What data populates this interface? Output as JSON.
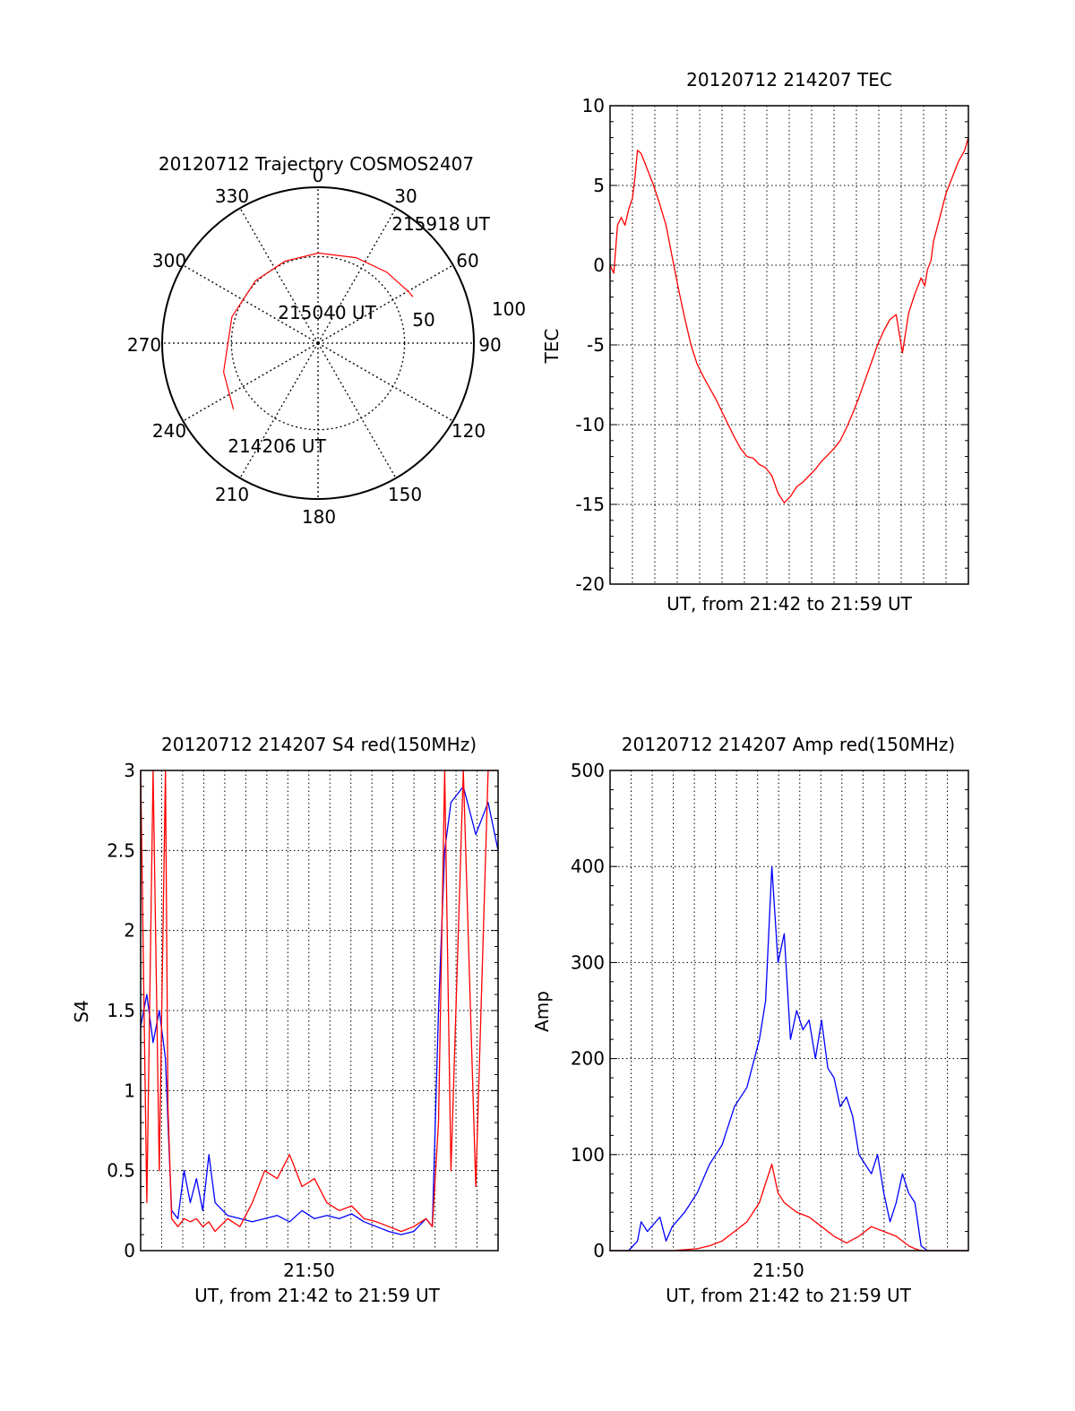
{
  "chart_data": [
    {
      "type": "polar",
      "title": "20120712 Trajectory COSMOS2407",
      "angle_labels": [
        "0",
        "30",
        "60",
        "90",
        "120",
        "150",
        "180",
        "210",
        "240",
        "270",
        "300",
        "330"
      ],
      "radius_labels": [
        "50",
        "100"
      ],
      "grid": true,
      "color": "#ff0000",
      "series": [
        {
          "points": [
            [
              232,
              62
            ],
            [
              253,
              57
            ],
            [
              287,
              52
            ],
            [
              315,
              51
            ],
            [
              338,
              51
            ],
            [
              0,
              52
            ],
            [
              24,
              54
            ],
            [
              44,
              57
            ],
            [
              60,
              60
            ],
            [
              64,
              61
            ]
          ]
        }
      ],
      "annotations": [
        {
          "label": "214206 UT",
          "az": 232,
          "zen": 62
        },
        {
          "label": "215040 UT",
          "az": 0,
          "zen": 52
        },
        {
          "label": "215918 UT",
          "az": 64,
          "zen": 61
        }
      ]
    },
    {
      "type": "line",
      "title": "20120712 214207 TEC",
      "xlabel": "UT, from 21:42 to 21:59 UT",
      "ylabel": "TEC",
      "xlim": [
        21.7,
        21.988
      ],
      "ylim": [
        -20,
        10
      ],
      "yticks": [
        "10",
        "5",
        "0",
        "-5",
        "-10",
        "-15",
        "-20"
      ],
      "grid": true,
      "series": [
        {
          "color": "#ff0000",
          "x": [
            21.7,
            21.703,
            21.706,
            21.709,
            21.712,
            21.715,
            21.718,
            21.72,
            21.722,
            21.725,
            21.73,
            21.735,
            21.74,
            21.745,
            21.75,
            21.755,
            21.76,
            21.765,
            21.77,
            21.775,
            21.78,
            21.785,
            21.79,
            21.795,
            21.8,
            21.805,
            21.81,
            21.815,
            21.82,
            21.825,
            21.83,
            21.835,
            21.84,
            21.845,
            21.85,
            21.855,
            21.86,
            21.865,
            21.87,
            21.875,
            21.88,
            21.885,
            21.89,
            21.895,
            21.9,
            21.905,
            21.91,
            21.915,
            21.92,
            21.925,
            21.93,
            21.935,
            21.94,
            21.945,
            21.95,
            21.953,
            21.955,
            21.958,
            21.96,
            21.965,
            21.97,
            21.975,
            21.98,
            21.985,
            21.988
          ],
          "y": [
            0.0,
            -0.5,
            2.5,
            3.0,
            2.5,
            3.5,
            4.2,
            5.5,
            7.2,
            7.0,
            6.0,
            5.0,
            3.8,
            2.5,
            0.5,
            -1.5,
            -3.3,
            -5.0,
            -6.2,
            -7.0,
            -7.7,
            -8.4,
            -9.2,
            -10.0,
            -10.8,
            -11.5,
            -12.0,
            -12.1,
            -12.5,
            -12.7,
            -13.2,
            -14.3,
            -14.9,
            -14.5,
            -13.9,
            -13.6,
            -13.2,
            -12.8,
            -12.3,
            -11.9,
            -11.5,
            -11.0,
            -10.2,
            -9.3,
            -8.3,
            -7.2,
            -6.1,
            -5.0,
            -4.1,
            -3.4,
            -3.1,
            -5.5,
            -3.0,
            -1.8,
            -0.8,
            -1.3,
            -0.3,
            0.3,
            1.5,
            3.0,
            4.5,
            5.5,
            6.5,
            7.2,
            8.0
          ]
        }
      ]
    },
    {
      "type": "line",
      "title": "20120712 214207 S4 red(150MHz)",
      "xlabel": "UT, from 21:42 to 21:59 UT",
      "ylabel": "S4",
      "xtick_label": "21:50",
      "xlim": [
        21.7,
        21.988
      ],
      "ylim": [
        0,
        3
      ],
      "yticks": [
        "3",
        "2.5",
        "2",
        "1.5",
        "1",
        "0.5",
        "0"
      ],
      "grid": true,
      "series": [
        {
          "color": "#0000ff",
          "x": [
            21.7,
            21.705,
            21.71,
            21.715,
            21.72,
            21.722,
            21.725,
            21.73,
            21.735,
            21.74,
            21.745,
            21.75,
            21.755,
            21.76,
            21.77,
            21.78,
            21.79,
            21.8,
            21.81,
            21.82,
            21.83,
            21.84,
            21.85,
            21.86,
            21.87,
            21.88,
            21.89,
            21.9,
            21.91,
            21.92,
            21.93,
            21.935,
            21.94,
            21.945,
            21.95,
            21.96,
            21.97,
            21.98,
            21.988
          ],
          "y": [
            1.4,
            1.6,
            1.3,
            1.5,
            1.2,
            0.8,
            0.25,
            0.2,
            0.5,
            0.3,
            0.45,
            0.25,
            0.6,
            0.3,
            0.22,
            0.2,
            0.18,
            0.2,
            0.22,
            0.18,
            0.25,
            0.2,
            0.22,
            0.2,
            0.23,
            0.18,
            0.15,
            0.12,
            0.1,
            0.12,
            0.2,
            0.15,
            1.5,
            2.5,
            2.8,
            2.9,
            2.6,
            2.8,
            2.5
          ]
        },
        {
          "color": "#ff0000",
          "x": [
            21.7,
            21.705,
            21.71,
            21.715,
            21.72,
            21.722,
            21.725,
            21.73,
            21.735,
            21.74,
            21.745,
            21.75,
            21.755,
            21.76,
            21.77,
            21.78,
            21.79,
            21.8,
            21.81,
            21.82,
            21.83,
            21.84,
            21.85,
            21.86,
            21.87,
            21.88,
            21.89,
            21.9,
            21.91,
            21.92,
            21.93,
            21.935,
            21.94,
            21.945,
            21.95,
            21.96,
            21.97,
            21.98,
            21.988
          ],
          "y": [
            3.0,
            0.3,
            3.0,
            0.5,
            3.0,
            0.9,
            0.2,
            0.15,
            0.2,
            0.18,
            0.2,
            0.15,
            0.18,
            0.12,
            0.2,
            0.15,
            0.3,
            0.5,
            0.45,
            0.6,
            0.4,
            0.45,
            0.3,
            0.25,
            0.28,
            0.2,
            0.18,
            0.15,
            0.12,
            0.15,
            0.2,
            0.15,
            0.8,
            3.0,
            0.5,
            3.0,
            0.4,
            3.0,
            3.0
          ]
        }
      ]
    },
    {
      "type": "line",
      "title": "20120712 214207 Amp red(150MHz)",
      "xlabel": "UT, from 21:42 to 21:59 UT",
      "ylabel": "Amp",
      "xtick_label": "21:50",
      "xlim": [
        21.7,
        21.988
      ],
      "ylim": [
        0,
        500
      ],
      "yticks": [
        "500",
        "400",
        "300",
        "200",
        "100",
        "0"
      ],
      "grid": true,
      "series": [
        {
          "color": "#0000ff",
          "x": [
            21.7,
            21.715,
            21.722,
            21.725,
            21.73,
            21.74,
            21.745,
            21.75,
            21.76,
            21.77,
            21.78,
            21.79,
            21.8,
            21.81,
            21.82,
            21.825,
            21.83,
            21.835,
            21.84,
            21.845,
            21.85,
            21.855,
            21.86,
            21.865,
            21.87,
            21.875,
            21.88,
            21.885,
            21.89,
            21.895,
            21.9,
            21.905,
            21.91,
            21.915,
            21.92,
            21.925,
            21.93,
            21.935,
            21.94,
            21.945,
            21.95,
            21.955,
            21.96,
            21.97,
            21.988
          ],
          "y": [
            0,
            0,
            10,
            30,
            20,
            35,
            10,
            25,
            40,
            60,
            90,
            110,
            150,
            170,
            220,
            260,
            400,
            300,
            330,
            220,
            250,
            230,
            240,
            200,
            240,
            190,
            180,
            150,
            160,
            140,
            100,
            90,
            80,
            100,
            60,
            30,
            50,
            80,
            60,
            50,
            5,
            0,
            0,
            0,
            0
          ]
        },
        {
          "color": "#ff0000",
          "x": [
            21.7,
            21.75,
            21.77,
            21.78,
            21.79,
            21.8,
            21.81,
            21.82,
            21.825,
            21.83,
            21.835,
            21.84,
            21.85,
            21.86,
            21.87,
            21.88,
            21.89,
            21.9,
            21.91,
            21.92,
            21.93,
            21.94,
            21.945,
            21.95,
            21.988
          ],
          "y": [
            0,
            0,
            2,
            5,
            10,
            20,
            30,
            50,
            70,
            90,
            60,
            50,
            40,
            35,
            25,
            15,
            8,
            15,
            25,
            20,
            15,
            5,
            2,
            0,
            0
          ]
        }
      ]
    }
  ]
}
